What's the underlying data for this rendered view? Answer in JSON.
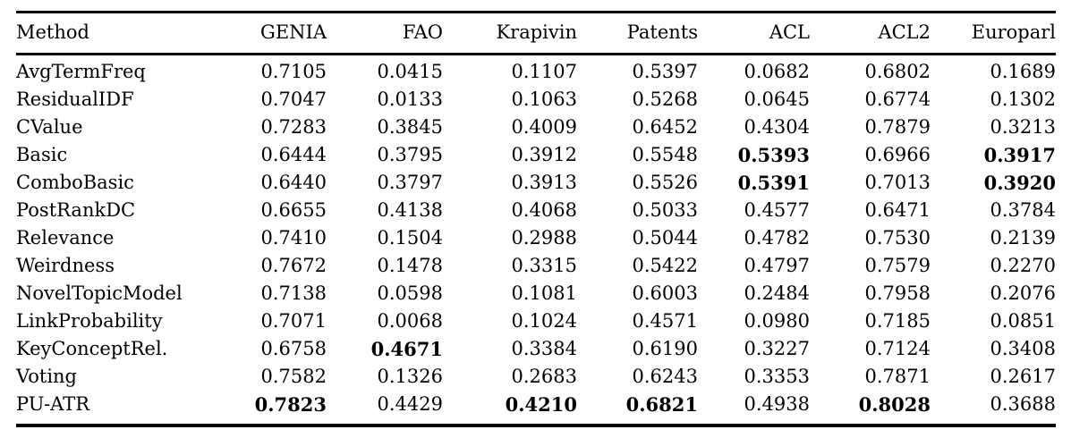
{
  "table": {
    "columns": [
      "Method",
      "GENIA",
      "FAO",
      "Krapivin",
      "Patents",
      "ACL",
      "ACL2",
      "Europarl"
    ],
    "rows": [
      {
        "method": "AvgTermFreq",
        "values": [
          "0.7105",
          "0.0415",
          "0.1107",
          "0.5397",
          "0.0682",
          "0.6802",
          "0.1689"
        ],
        "bold": []
      },
      {
        "method": "ResidualIDF",
        "values": [
          "0.7047",
          "0.0133",
          "0.1063",
          "0.5268",
          "0.0645",
          "0.6774",
          "0.1302"
        ],
        "bold": []
      },
      {
        "method": "CValue",
        "values": [
          "0.7283",
          "0.3845",
          "0.4009",
          "0.6452",
          "0.4304",
          "0.7879",
          "0.3213"
        ],
        "bold": []
      },
      {
        "method": "Basic",
        "values": [
          "0.6444",
          "0.3795",
          "0.3912",
          "0.5548",
          "0.5393",
          "0.6966",
          "0.3917"
        ],
        "bold": [
          4,
          6
        ]
      },
      {
        "method": "ComboBasic",
        "values": [
          "0.6440",
          "0.3797",
          "0.3913",
          "0.5526",
          "0.5391",
          "0.7013",
          "0.3920"
        ],
        "bold": [
          4,
          6
        ]
      },
      {
        "method": "PostRankDC",
        "values": [
          "0.6655",
          "0.4138",
          "0.4068",
          "0.5033",
          "0.4577",
          "0.6471",
          "0.3784"
        ],
        "bold": []
      },
      {
        "method": "Relevance",
        "values": [
          "0.7410",
          "0.1504",
          "0.2988",
          "0.5044",
          "0.4782",
          "0.7530",
          "0.2139"
        ],
        "bold": []
      },
      {
        "method": "Weirdness",
        "values": [
          "0.7672",
          "0.1478",
          "0.3315",
          "0.5422",
          "0.4797",
          "0.7579",
          "0.2270"
        ],
        "bold": []
      },
      {
        "method": "NovelTopicModel",
        "values": [
          "0.7138",
          "0.0598",
          "0.1081",
          "0.6003",
          "0.2484",
          "0.7958",
          "0.2076"
        ],
        "bold": []
      },
      {
        "method": "LinkProbability",
        "values": [
          "0.7071",
          "0.0068",
          "0.1024",
          "0.4571",
          "0.0980",
          "0.7185",
          "0.0851"
        ],
        "bold": []
      },
      {
        "method": "KeyConceptRel.",
        "values": [
          "0.6758",
          "0.4671",
          "0.3384",
          "0.6190",
          "0.3227",
          "0.7124",
          "0.3408"
        ],
        "bold": [
          1
        ]
      },
      {
        "method": "Voting",
        "values": [
          "0.7582",
          "0.1326",
          "0.2683",
          "0.6243",
          "0.3353",
          "0.7871",
          "0.2617"
        ],
        "bold": []
      },
      {
        "method": "PU-ATR",
        "values": [
          "0.7823",
          "0.4429",
          "0.4210",
          "0.6821",
          "0.4938",
          "0.8028",
          "0.3688"
        ],
        "bold": [
          0,
          2,
          3,
          5
        ]
      }
    ]
  },
  "colors": {
    "text": "#000000",
    "background": "#ffffff",
    "rule": "#000000"
  }
}
